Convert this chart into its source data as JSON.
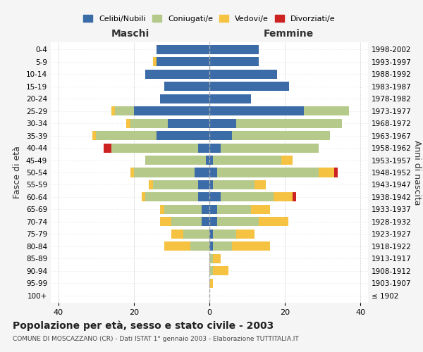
{
  "age_groups": [
    "100+",
    "95-99",
    "90-94",
    "85-89",
    "80-84",
    "75-79",
    "70-74",
    "65-69",
    "60-64",
    "55-59",
    "50-54",
    "45-49",
    "40-44",
    "35-39",
    "30-34",
    "25-29",
    "20-24",
    "15-19",
    "10-14",
    "5-9",
    "0-4"
  ],
  "birth_years": [
    "≤ 1902",
    "1903-1907",
    "1908-1912",
    "1913-1917",
    "1918-1922",
    "1923-1927",
    "1928-1932",
    "1933-1937",
    "1938-1942",
    "1943-1947",
    "1948-1952",
    "1953-1957",
    "1958-1962",
    "1963-1967",
    "1968-1972",
    "1973-1977",
    "1978-1982",
    "1983-1987",
    "1988-1992",
    "1993-1997",
    "1998-2002"
  ],
  "colors": {
    "celibi": "#3b6ca8",
    "coniugati": "#b5c98a",
    "vedovi": "#f5c242",
    "divorziati": "#cc2222"
  },
  "maschi": {
    "celibi": [
      0,
      0,
      0,
      0,
      0,
      0,
      2,
      2,
      3,
      3,
      4,
      1,
      3,
      14,
      11,
      20,
      13,
      12,
      17,
      14,
      14
    ],
    "coniugati": [
      0,
      0,
      0,
      0,
      5,
      7,
      8,
      10,
      14,
      12,
      16,
      16,
      23,
      16,
      10,
      5,
      0,
      0,
      0,
      0,
      0
    ],
    "vedovi": [
      0,
      0,
      0,
      0,
      7,
      3,
      3,
      1,
      1,
      1,
      1,
      0,
      0,
      1,
      1,
      1,
      0,
      0,
      0,
      1,
      0
    ],
    "divorziati": [
      0,
      0,
      0,
      0,
      0,
      0,
      0,
      0,
      0,
      0,
      0,
      0,
      2,
      0,
      0,
      0,
      0,
      0,
      0,
      0,
      0
    ]
  },
  "femmine": {
    "nubili": [
      0,
      0,
      0,
      0,
      1,
      1,
      2,
      2,
      3,
      1,
      2,
      1,
      3,
      6,
      7,
      25,
      11,
      21,
      18,
      13,
      13
    ],
    "coniugate": [
      0,
      0,
      1,
      1,
      5,
      6,
      11,
      9,
      14,
      11,
      27,
      18,
      26,
      26,
      28,
      12,
      0,
      0,
      0,
      0,
      0
    ],
    "vedove": [
      0,
      1,
      4,
      2,
      10,
      5,
      8,
      5,
      5,
      3,
      4,
      3,
      0,
      0,
      0,
      0,
      0,
      0,
      0,
      0,
      0
    ],
    "divorziate": [
      0,
      0,
      0,
      0,
      0,
      0,
      0,
      0,
      1,
      0,
      1,
      0,
      0,
      0,
      0,
      0,
      0,
      0,
      0,
      0,
      0
    ]
  },
  "xlim": 42,
  "title": "Popolazione per età, sesso e stato civile - 2003",
  "subtitle": "COMUNE DI MOSCAZZANO (CR) - Dati ISTAT 1° gennaio 2003 - Elaborazione TUTTITALIA.IT",
  "ylabel_left": "Fasce di età",
  "ylabel_right": "Anni di nascita",
  "xlabel_maschi": "Maschi",
  "xlabel_femmine": "Femmine",
  "legend_labels": [
    "Celibi/Nubili",
    "Coniugati/e",
    "Vedovi/e",
    "Divorziati/e"
  ],
  "bg_color": "#f5f5f5",
  "plot_bg": "#ffffff"
}
